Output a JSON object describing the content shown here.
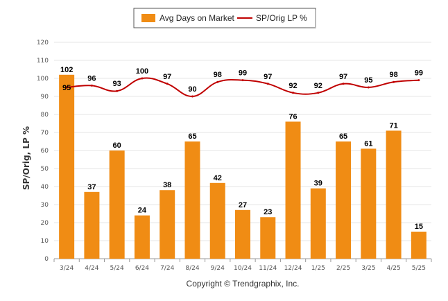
{
  "colors": {
    "bar": "#f08c14",
    "line": "#c00000",
    "grid": "#e6e6e6",
    "axis": "#999999"
  },
  "legend": {
    "bar_label": "Avg Days on Market",
    "line_label": "SP/Orig LP %",
    "placement": "top-center"
  },
  "copyright": "Copyright © Trendgraphix, Inc.",
  "chart_data": {
    "type": "bar",
    "ylabel": "SP/Orig, LP %",
    "ylim": [
      0,
      120
    ],
    "yticks": [
      "0",
      "10",
      "20",
      "30",
      "40",
      "50",
      "60",
      "70",
      "80",
      "90",
      "100",
      "110",
      "120"
    ],
    "grid": true,
    "categories": [
      "3/24",
      "4/24",
      "5/24",
      "6/24",
      "7/24",
      "8/24",
      "9/24",
      "10/24",
      "11/24",
      "12/24",
      "1/25",
      "2/25",
      "3/25",
      "4/25",
      "5/25"
    ],
    "series": [
      {
        "name": "Avg Days on Market",
        "type": "bar",
        "values": [
          102,
          37,
          60,
          24,
          38,
          65,
          42,
          27,
          23,
          76,
          39,
          65,
          61,
          71,
          15
        ],
        "labels": [
          "102",
          "37",
          "60",
          "24",
          "38",
          "65",
          "42",
          "27",
          "23",
          "76",
          "39",
          "65",
          "61",
          "71",
          "15"
        ]
      },
      {
        "name": "SP/Orig LP %",
        "type": "line",
        "values": [
          95,
          96,
          93,
          100,
          97,
          90,
          98,
          99,
          97,
          92,
          92,
          97,
          95,
          98,
          99
        ],
        "labels": [
          "95",
          "96",
          "93",
          "100",
          "97",
          "90",
          "98",
          "99",
          "97",
          "92",
          "92",
          "97",
          "95",
          "98",
          "99"
        ]
      }
    ]
  }
}
